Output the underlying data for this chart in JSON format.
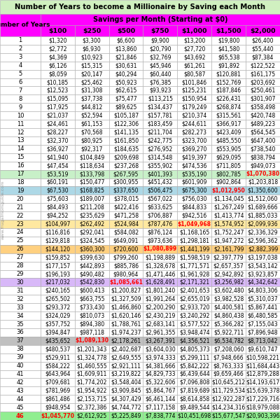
{
  "title": "Number of Years to become a Millionaire by Saving each Month",
  "col_header_top": "Savings per Month (Starting at $0)",
  "col_header_row": [
    "Number of Years",
    "$100",
    "$250",
    "$500",
    "$750",
    "$1,000",
    "$1,500",
    "$2,000"
  ],
  "rows": [
    [
      1,
      "$1,320",
      "$3,300",
      "$6,600",
      "$9,900",
      "$13,200",
      "$19,800",
      "$26,400"
    ],
    [
      2,
      "$2,772",
      "$6,930",
      "$13,860",
      "$20,790",
      "$27,720",
      "$41,580",
      "$55,440"
    ],
    [
      3,
      "$4,369",
      "$10,923",
      "$21,846",
      "$32,769",
      "$43,692",
      "$65,538",
      "$87,384"
    ],
    [
      4,
      "$6,126",
      "$15,315",
      "$30,631",
      "$45,946",
      "$61,261",
      "$91,892",
      "$122,522"
    ],
    [
      5,
      "$8,059",
      "$20,147",
      "$40,294",
      "$60,440",
      "$80,587",
      "$120,881",
      "$161,175"
    ],
    [
      6,
      "$10,185",
      "$25,462",
      "$50,923",
      "$76,385",
      "$101,846",
      "$152,769",
      "$203,692"
    ],
    [
      7,
      "$12,523",
      "$31,308",
      "$62,615",
      "$93,923",
      "$125,231",
      "$187,846",
      "$250,461"
    ],
    [
      8,
      "$15,095",
      "$37,738",
      "$75,477",
      "$113,215",
      "$150,954",
      "$226,431",
      "$301,907"
    ],
    [
      9,
      "$17,925",
      "$44,812",
      "$89,625",
      "$134,437",
      "$179,249",
      "$268,874",
      "$358,498"
    ],
    [
      10,
      "$21,037",
      "$52,594",
      "$105,187",
      "$157,781",
      "$210,374",
      "$315,561",
      "$420,748"
    ],
    [
      11,
      "$24,461",
      "$61,153",
      "$122,306",
      "$183,459",
      "$244,611",
      "$366,917",
      "$489,223"
    ],
    [
      12,
      "$28,227",
      "$70,568",
      "$141,135",
      "$211,704",
      "$282,273",
      "$423,409",
      "$564,545"
    ],
    [
      13,
      "$32,370",
      "$80,925",
      "$161,850",
      "$242,775",
      "$323,700",
      "$485,550",
      "$647,400"
    ],
    [
      14,
      "$36,927",
      "$92,317",
      "$184,635",
      "$276,952",
      "$369,270",
      "$553,905",
      "$738,540"
    ],
    [
      15,
      "$41,940",
      "$104,849",
      "$209,698",
      "$314,548",
      "$419,397",
      "$629,095",
      "$838,794"
    ],
    [
      16,
      "$47,454",
      "$118,634",
      "$237,268",
      "$355,902",
      "$474,536",
      "$711,805",
      "$949,073"
    ],
    [
      17,
      "$53,519",
      "$133,798",
      "$267,595",
      "$401,393",
      "$535,190",
      "$802,785",
      "$1,070,380"
    ],
    [
      18,
      "$60,191",
      "$150,477",
      "$300,955",
      "$451,432",
      "$601,909",
      "$902,864",
      "$1,203,818"
    ],
    [
      19,
      "$67,530",
      "$168,825",
      "$337,650",
      "$506,475",
      "$675,300",
      "$1,012,950",
      "$1,350,600"
    ],
    [
      20,
      "$75,603",
      "$189,007",
      "$378,015",
      "$567,022",
      "$756,030",
      "$1,134,045",
      "$1,512,060"
    ],
    [
      21,
      "$84,493",
      "$211,208",
      "$422,416",
      "$633,625",
      "$844,833",
      "$1,267,249",
      "$1,689,666"
    ],
    [
      22,
      "$94,252",
      "$235,629",
      "$471,258",
      "$706,887",
      "$942,516",
      "$1,413,774",
      "$1,885,033"
    ],
    [
      23,
      "$104,997",
      "$262,492",
      "$524,984",
      "$787,476",
      "$1,049,968",
      "$1,574,952",
      "$2,099,936"
    ],
    [
      24,
      "$116,816",
      "$292,041",
      "$584,082",
      "$876,124",
      "$1,168,165",
      "$1,752,247",
      "$2,336,329"
    ],
    [
      25,
      "$129,818",
      "$324,545",
      "$649,091",
      "$973,636",
      "$1,298,181",
      "$1,947,272",
      "$2,596,362"
    ],
    [
      26,
      "$144,120",
      "$360,300",
      "$720,600",
      "$1,080,899",
      "$1,441,199",
      "$2,161,799",
      "$2,882,399"
    ],
    [
      27,
      "$159,852",
      "$399,630",
      "$799,260",
      "$1,198,889",
      "$1,598,519",
      "$2,397,779",
      "$3,197,038"
    ],
    [
      28,
      "$177,157",
      "$442,893",
      "$885,786",
      "$1,328,678",
      "$1,771,571",
      "$2,657,357",
      "$3,543,142"
    ],
    [
      29,
      "$196,193",
      "$490,482",
      "$980,964",
      "$1,471,446",
      "$1,961,928",
      "$2,942,892",
      "$3,923,857"
    ],
    [
      30,
      "$217,032",
      "$542,830",
      "$1,085,661",
      "$1,628,491",
      "$2,171,321",
      "$3,256,982",
      "$4,342,642"
    ],
    [
      31,
      "$240,165",
      "$600,413",
      "$1,200,827",
      "$1,801,240",
      "$2,401,653",
      "$3,602,480",
      "$4,803,306"
    ],
    [
      32,
      "$265,502",
      "$663,755",
      "$1,327,509",
      "$1,991,264",
      "$2,655,019",
      "$3,982,528",
      "$5,310,037"
    ],
    [
      33,
      "$293,372",
      "$733,430",
      "$1,466,860",
      "$2,200,290",
      "$2,933,720",
      "$4,400,581",
      "$5,867,441"
    ],
    [
      34,
      "$324,029",
      "$810,073",
      "$1,620,146",
      "$2,430,219",
      "$3,240,292",
      "$4,860,438",
      "$6,480,585"
    ],
    [
      35,
      "$357,752",
      "$894,380",
      "$1,788,761",
      "$2,683,141",
      "$3,577,522",
      "$5,366,282",
      "$7,155,043"
    ],
    [
      36,
      "$394,847",
      "$987,118",
      "$1,974,237",
      "$2,961,355",
      "$3,948,474",
      "$5,922,711",
      "$7,896,948"
    ],
    [
      37,
      "$435,652",
      "$1,089,130",
      "$2,178,261",
      "$3,267,391",
      "$4,356,521",
      "$6,534,782",
      "$8,713,042"
    ],
    [
      38,
      "$480,537",
      "$1,201,343",
      "$2,402,687",
      "$3,604,030",
      "$4,805,373",
      "$7,208,060",
      "$9,610,747"
    ],
    [
      39,
      "$529,911",
      "$1,324,778",
      "$2,649,555",
      "$3,974,333",
      "$5,299,111",
      "$7,948,666",
      "$10,598,221"
    ],
    [
      40,
      "$584,222",
      "$1,460,555",
      "$2,921,111",
      "$4,381,666",
      "$5,842,222",
      "$8,763,333",
      "$11,684,443"
    ],
    [
      41,
      "$643,964",
      "$1,609,911",
      "$3,219,822",
      "$4,829,733",
      "$6,439,644",
      "$9,659,466",
      "$12,879,288"
    ],
    [
      42,
      "$709,681",
      "$1,774,202",
      "$3,548,404",
      "$5,322,606",
      "$7,096,808",
      "$10,645,212",
      "$14,193,617"
    ],
    [
      43,
      "$781,969",
      "$1,954,922",
      "$3,909,845",
      "$5,864,767",
      "$7,819,689",
      "$11,729,534",
      "$15,639,378"
    ],
    [
      44,
      "$861,486",
      "$2,153,715",
      "$4,307,429",
      "$6,461,144",
      "$8,614,858",
      "$12,922,287",
      "$17,229,716"
    ],
    [
      45,
      "$948,954",
      "$2,372,386",
      "$4,744,772",
      "$7,117,158",
      "$9,489,544",
      "$14,234,316",
      "$18,979,088"
    ],
    [
      46,
      "$1,045,770",
      "$2,612,925",
      "$5,225,849",
      "$7,838,774",
      "$10,451,698",
      "$15,677,547",
      "$20,903,396"
    ]
  ],
  "highlight_rows": {
    "17": {
      "color": "#c8f0c8",
      "milestone_col": 7,
      "milestone_color": "#ff0000"
    },
    "19": {
      "color": "#add8e6",
      "milestone_col": 6,
      "milestone_color": "#ff0000"
    },
    "23": {
      "color": "#ffe8a0",
      "milestone_col": 5,
      "milestone_color": "#ff0000"
    },
    "26": {
      "color": "#ffd080",
      "milestone_col": 4,
      "milestone_color": "#ff0000"
    },
    "30": {
      "color": "#d8b8f8",
      "milestone_col": 3,
      "milestone_color": "#ff0000"
    },
    "37": {
      "color": "#c0c0c0",
      "milestone_col": 2,
      "milestone_color": "#ff0000"
    },
    "46": {
      "color": "#90ee90",
      "milestone_col": 1,
      "milestone_color": "#ff0000"
    }
  },
  "title_bg": "#d0f0c0",
  "subheader_bg": "#ff00ff",
  "colheader_bg": "#ff00ff",
  "rowheader_bg": "#ff00ff",
  "border_color": "#aaaaaa",
  "watermark": "www.frugalmomguide.com"
}
